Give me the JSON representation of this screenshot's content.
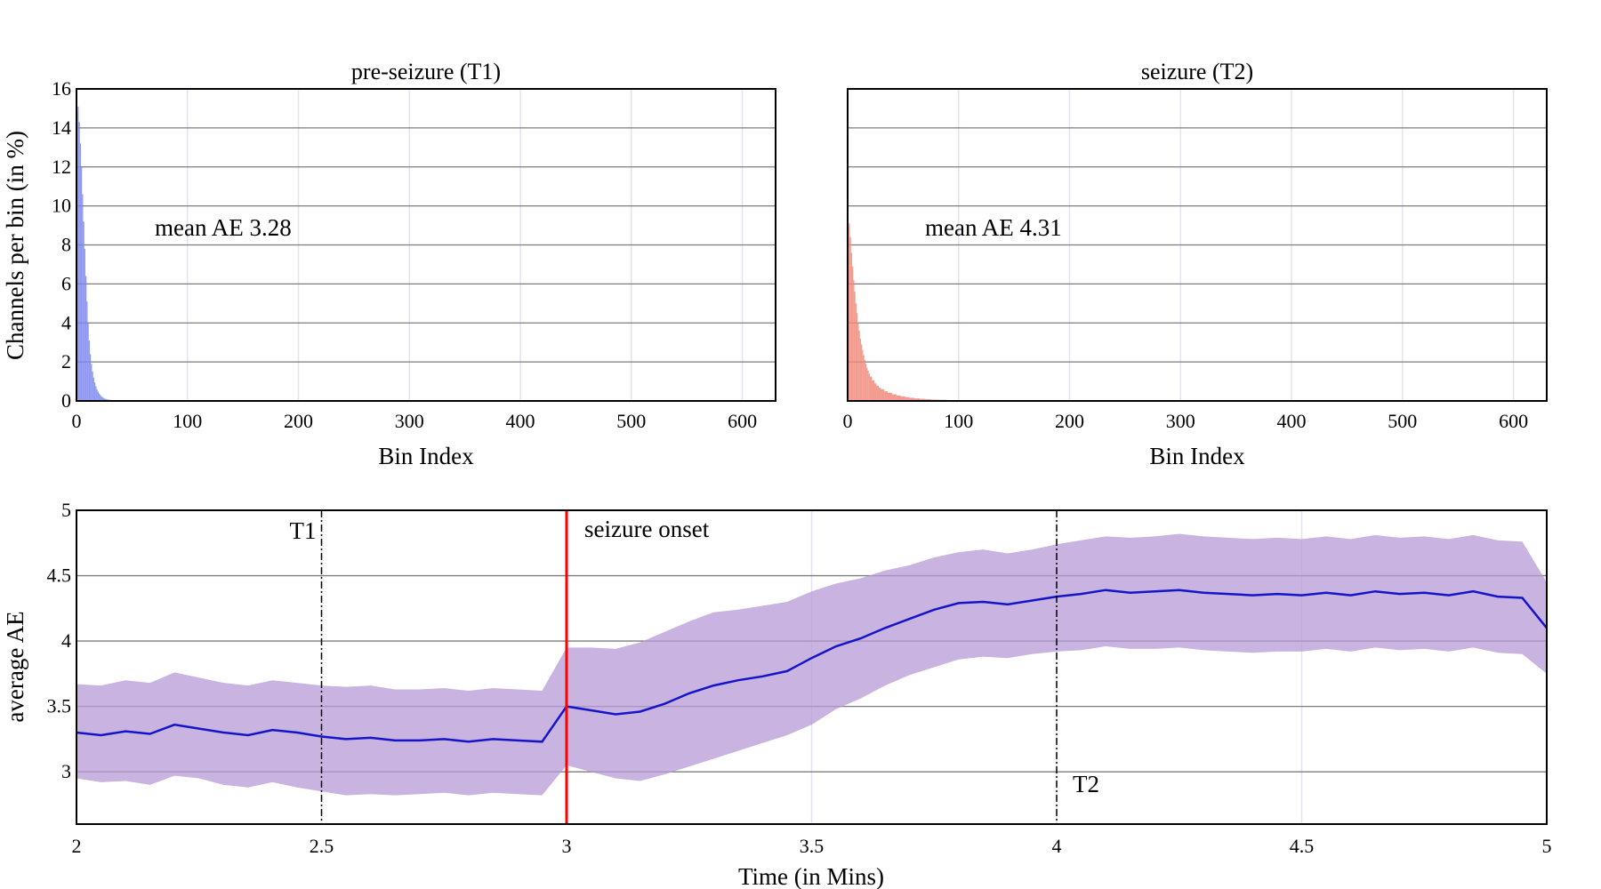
{
  "chart_data": [
    {
      "type": "bar",
      "title": "pre-seizure (T1)",
      "xlabel": "Bin Index",
      "ylabel": "Channels per bin (in %)",
      "xlim": [
        0,
        630
      ],
      "ylim": [
        0,
        16
      ],
      "xticks": [
        0,
        100,
        200,
        300,
        400,
        500,
        600
      ],
      "yticks": [
        0,
        2,
        4,
        6,
        8,
        10,
        12,
        14,
        16
      ],
      "annotation": "mean AE 3.28",
      "color": "#7b86f0",
      "x": [
        0,
        1,
        2,
        3,
        4,
        5,
        6,
        7,
        8,
        9,
        10,
        11,
        12,
        13,
        14,
        15,
        16,
        17,
        18,
        19,
        20,
        21,
        22,
        23,
        24,
        25,
        26,
        27,
        28,
        29,
        30,
        32,
        34,
        36,
        38,
        40,
        44,
        48,
        52,
        56,
        60
      ],
      "values": [
        14.8,
        15.1,
        14.3,
        13.2,
        12.0,
        10.6,
        9.2,
        7.8,
        6.4,
        5.1,
        4.0,
        3.1,
        2.4,
        1.9,
        1.5,
        1.2,
        0.95,
        0.75,
        0.6,
        0.48,
        0.38,
        0.3,
        0.24,
        0.19,
        0.15,
        0.12,
        0.1,
        0.08,
        0.07,
        0.06,
        0.05,
        0.04,
        0.03,
        0.025,
        0.02,
        0.015,
        0.012,
        0.01,
        0.008,
        0.006,
        0.005
      ]
    },
    {
      "type": "bar",
      "title": "seizure (T2)",
      "xlabel": "Bin Index",
      "ylabel": "",
      "xlim": [
        0,
        630
      ],
      "ylim": [
        0,
        16
      ],
      "xticks": [
        0,
        100,
        200,
        300,
        400,
        500,
        600
      ],
      "yticks": [
        0,
        2,
        4,
        6,
        8,
        10,
        12,
        14,
        16
      ],
      "annotation": "mean AE 4.31",
      "color": "#f08a7a",
      "x": [
        0,
        1,
        2,
        3,
        4,
        5,
        6,
        7,
        8,
        9,
        10,
        11,
        12,
        13,
        14,
        15,
        16,
        17,
        18,
        19,
        20,
        22,
        24,
        26,
        28,
        30,
        33,
        36,
        40,
        44,
        48,
        52,
        56,
        60,
        65,
        70,
        75,
        80,
        90,
        100,
        110,
        120
      ],
      "values": [
        8.9,
        9.1,
        8.4,
        7.6,
        6.9,
        6.2,
        5.6,
        5.0,
        4.5,
        4.0,
        3.6,
        3.2,
        2.9,
        2.6,
        2.35,
        2.1,
        1.9,
        1.7,
        1.55,
        1.4,
        1.25,
        1.05,
        0.9,
        0.78,
        0.68,
        0.6,
        0.5,
        0.42,
        0.34,
        0.28,
        0.23,
        0.19,
        0.16,
        0.13,
        0.11,
        0.09,
        0.07,
        0.06,
        0.04,
        0.03,
        0.02,
        0.01
      ]
    },
    {
      "type": "line",
      "title": "",
      "xlabel": "Time (in Mins)",
      "ylabel": "average AE",
      "xlim": [
        2,
        5
      ],
      "ylim": [
        2.6,
        5
      ],
      "xticks": [
        2,
        2.5,
        3,
        3.5,
        4,
        4.5,
        5
      ],
      "yticks": [
        3,
        3.5,
        4,
        4.5,
        5
      ],
      "band_color": "#b79ad6",
      "line_color": "#1414c8",
      "x": [
        2.0,
        2.05,
        2.1,
        2.15,
        2.2,
        2.25,
        2.3,
        2.35,
        2.4,
        2.45,
        2.5,
        2.55,
        2.6,
        2.65,
        2.7,
        2.75,
        2.8,
        2.85,
        2.9,
        2.95,
        3.0,
        3.05,
        3.1,
        3.15,
        3.2,
        3.25,
        3.3,
        3.35,
        3.4,
        3.45,
        3.5,
        3.55,
        3.6,
        3.65,
        3.7,
        3.75,
        3.8,
        3.85,
        3.9,
        3.95,
        4.0,
        4.05,
        4.1,
        4.15,
        4.2,
        4.25,
        4.3,
        4.35,
        4.4,
        4.45,
        4.5,
        4.55,
        4.6,
        4.65,
        4.7,
        4.75,
        4.8,
        4.85,
        4.9,
        4.95,
        5.0
      ],
      "mean": [
        3.3,
        3.28,
        3.31,
        3.29,
        3.36,
        3.33,
        3.3,
        3.28,
        3.32,
        3.3,
        3.27,
        3.25,
        3.26,
        3.24,
        3.24,
        3.25,
        3.23,
        3.25,
        3.24,
        3.23,
        3.5,
        3.47,
        3.44,
        3.46,
        3.52,
        3.6,
        3.66,
        3.7,
        3.73,
        3.77,
        3.87,
        3.96,
        4.02,
        4.1,
        4.17,
        4.24,
        4.29,
        4.3,
        4.28,
        4.31,
        4.34,
        4.36,
        4.39,
        4.37,
        4.38,
        4.39,
        4.37,
        4.36,
        4.35,
        4.36,
        4.35,
        4.37,
        4.35,
        4.38,
        4.36,
        4.37,
        4.35,
        4.38,
        4.34,
        4.33,
        4.1
      ],
      "band_low": [
        2.95,
        2.92,
        2.93,
        2.9,
        2.97,
        2.95,
        2.9,
        2.88,
        2.92,
        2.88,
        2.85,
        2.82,
        2.83,
        2.82,
        2.83,
        2.84,
        2.82,
        2.84,
        2.83,
        2.82,
        3.05,
        3.0,
        2.95,
        2.93,
        2.98,
        3.04,
        3.1,
        3.16,
        3.22,
        3.28,
        3.36,
        3.48,
        3.56,
        3.66,
        3.74,
        3.8,
        3.86,
        3.88,
        3.87,
        3.9,
        3.92,
        3.93,
        3.96,
        3.94,
        3.94,
        3.95,
        3.93,
        3.92,
        3.91,
        3.92,
        3.92,
        3.94,
        3.92,
        3.95,
        3.93,
        3.94,
        3.92,
        3.95,
        3.91,
        3.9,
        3.75
      ],
      "band_high": [
        3.67,
        3.66,
        3.7,
        3.68,
        3.76,
        3.72,
        3.68,
        3.66,
        3.7,
        3.68,
        3.66,
        3.65,
        3.66,
        3.63,
        3.63,
        3.64,
        3.62,
        3.64,
        3.63,
        3.62,
        3.95,
        3.95,
        3.94,
        3.99,
        4.07,
        4.15,
        4.22,
        4.24,
        4.27,
        4.3,
        4.38,
        4.44,
        4.48,
        4.54,
        4.58,
        4.64,
        4.68,
        4.7,
        4.67,
        4.7,
        4.74,
        4.77,
        4.8,
        4.79,
        4.8,
        4.82,
        4.8,
        4.79,
        4.78,
        4.79,
        4.78,
        4.8,
        4.78,
        4.81,
        4.79,
        4.8,
        4.78,
        4.81,
        4.77,
        4.76,
        4.45
      ],
      "vlines": [
        {
          "x": 2.5,
          "label": "T1",
          "style": "dashdot",
          "color": "#000000"
        },
        {
          "x": 3.0,
          "label": "seizure onset",
          "style": "solid",
          "color": "#ff0000"
        },
        {
          "x": 4.0,
          "label": "T2",
          "style": "dashdot",
          "color": "#000000"
        }
      ]
    }
  ]
}
